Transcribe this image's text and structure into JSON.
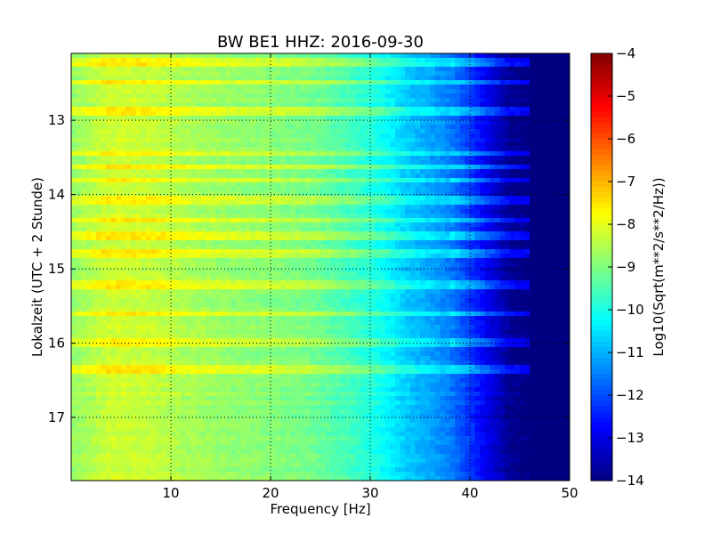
{
  "chart_data": [
    {
      "type": "heatmap",
      "title": "BW BE1 HHZ: 2016-09-30",
      "xlabel": "Frequency [Hz]",
      "ylabel": "Lokalzeit (UTC + 2 Stunde)",
      "xlim": [
        0,
        50
      ],
      "ylim": [
        17.85,
        12.1
      ],
      "y_inverted": true,
      "x_ticks": [
        10,
        20,
        30,
        40,
        50
      ],
      "x_tick_labels": [
        "10",
        "20",
        "30",
        "40",
        "50"
      ],
      "y_ticks": [
        13,
        14,
        15,
        16,
        17
      ],
      "y_tick_labels": [
        "13",
        "14",
        "15",
        "16",
        "17"
      ],
      "grid": "dotted",
      "colormap": "jet",
      "value_range": [
        -14,
        -4
      ],
      "spectral_profile": {
        "frequency_hz": [
          0,
          2,
          4,
          8,
          12,
          16,
          20,
          24,
          28,
          30,
          32,
          33,
          34,
          36,
          38,
          40,
          42,
          44,
          46,
          50
        ],
        "log10_amplitude": [
          -8.8,
          -8.5,
          -8.2,
          -8.3,
          -8.6,
          -8.8,
          -8.9,
          -9.1,
          -9.6,
          -9.9,
          -10.3,
          -10.6,
          -10.8,
          -11.1,
          -11.5,
          -12.2,
          -13.0,
          -13.8,
          -14.0,
          -14.0
        ]
      },
      "high_energy_bands_hours": [
        12.22,
        12.5,
        12.88,
        13.45,
        13.62,
        13.82,
        14.08,
        14.35,
        14.55,
        14.8,
        15.2,
        15.6,
        15.98,
        16.35
      ]
    },
    {
      "type": "heatmap",
      "title": "",
      "ylabel": "Log10(Sqrt(m**2/s**2/Hz))",
      "colormap": "jet",
      "range": [
        -14,
        -4
      ],
      "ticks": [
        -4,
        -5,
        -6,
        -7,
        -8,
        -9,
        -10,
        -11,
        -12,
        -13,
        -14
      ],
      "tick_labels": [
        "−4",
        "−5",
        "−6",
        "−7",
        "−8",
        "−9",
        "−10",
        "−11",
        "−12",
        "−13",
        "−14"
      ]
    }
  ]
}
